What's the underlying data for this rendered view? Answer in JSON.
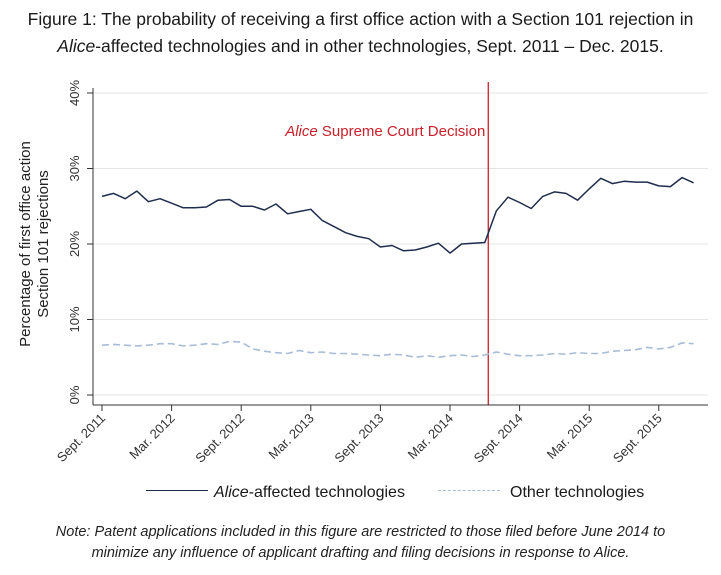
{
  "title": {
    "line1": "Figure 1: The probability of receiving a first office action with a Section 101 rejection in",
    "line2_italic": "Alice",
    "line2_rest": "-affected technologies and in other technologies, Sept. 2011 – Dec. 2015."
  },
  "legend": {
    "series1_italic": "Alice",
    "series1_rest": "-affected technologies",
    "series2": "Other technologies"
  },
  "note": {
    "line1": "Note: Patent applications included in this figure are restricted to those filed before June 2014 to",
    "line2": "minimize any influence of applicant drafting and filing decisions in response to Alice."
  },
  "colors": {
    "alice_series": "#1f2d4d",
    "other_series": "#a7bcd6",
    "decision_line": "#c8202a",
    "grid": "#e4e4e4",
    "axis": "#333333"
  },
  "chart_data": {
    "type": "line",
    "title": "",
    "xlabel": "",
    "ylabel_lines": [
      "Percentage of first office action",
      "Section 101 rejections"
    ],
    "ylim": [
      0,
      40
    ],
    "yticks": [
      {
        "value": 0,
        "label": "0%"
      },
      {
        "value": 10,
        "label": "10%"
      },
      {
        "value": 20,
        "label": "20%"
      },
      {
        "value": 30,
        "label": "30%"
      },
      {
        "value": 40,
        "label": "40%"
      }
    ],
    "x_start_label": "Sept. 2011",
    "x_end_label": "Dec. 2015",
    "x_range_months": [
      0,
      52
    ],
    "xticks": [
      {
        "month": 0,
        "label": "Sept. 2011"
      },
      {
        "month": 6,
        "label": "Mar. 2012"
      },
      {
        "month": 12,
        "label": "Sept. 2012"
      },
      {
        "month": 18,
        "label": "Mar. 2013"
      },
      {
        "month": 24,
        "label": "Sept. 2013"
      },
      {
        "month": 30,
        "label": "Mar. 2014"
      },
      {
        "month": 36,
        "label": "Sept. 2014"
      },
      {
        "month": 42,
        "label": "Mar. 2015"
      },
      {
        "month": 48,
        "label": "Sept. 2015"
      }
    ],
    "annotation": {
      "month": 33.3,
      "label_italic": "Alice",
      "label_rest": " Supreme Court Decision"
    },
    "series": [
      {
        "name": "Alice-affected technologies",
        "style": "solid",
        "values": [
          26.3,
          26.7,
          26.0,
          27.0,
          25.6,
          26.0,
          25.4,
          24.8,
          24.8,
          24.9,
          25.8,
          25.9,
          25.0,
          25.0,
          24.5,
          25.3,
          24.0,
          24.3,
          24.6,
          23.1,
          22.3,
          21.5,
          21.0,
          20.7,
          19.6,
          19.8,
          19.1,
          19.2,
          19.6,
          20.1,
          18.8,
          20.0,
          20.1,
          20.2,
          24.4,
          26.2,
          25.5,
          24.7,
          26.3,
          26.9,
          26.7,
          25.8,
          27.3,
          28.7,
          28.0,
          28.3,
          28.2,
          28.2,
          27.7,
          27.6,
          28.8,
          28.1
        ]
      },
      {
        "name": "Other technologies",
        "style": "dashed",
        "values": [
          6.6,
          6.7,
          6.6,
          6.5,
          6.6,
          6.8,
          6.8,
          6.5,
          6.6,
          6.8,
          6.7,
          7.1,
          7.0,
          6.1,
          5.8,
          5.6,
          5.5,
          5.9,
          5.6,
          5.7,
          5.5,
          5.5,
          5.4,
          5.3,
          5.2,
          5.4,
          5.3,
          5.0,
          5.2,
          5.0,
          5.2,
          5.3,
          5.1,
          5.3,
          5.7,
          5.4,
          5.2,
          5.2,
          5.3,
          5.5,
          5.4,
          5.6,
          5.5,
          5.5,
          5.8,
          5.9,
          6.0,
          6.3,
          6.1,
          6.3,
          6.9,
          6.8
        ]
      }
    ]
  }
}
